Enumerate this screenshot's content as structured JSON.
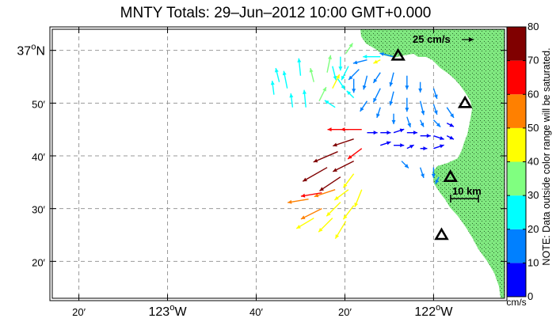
{
  "title": "MNTY Totals: 29–Jun–2012 10:00 GMT+0.000",
  "lat_labels": [
    {
      "lat": 37.0,
      "deg": "37",
      "sup": "o",
      "suffix": "N"
    },
    {
      "lat": 36.8333,
      "text": "50′"
    },
    {
      "lat": 36.6667,
      "text": "40′"
    },
    {
      "lat": 36.5,
      "text": "30′"
    },
    {
      "lat": 36.3333,
      "text": "20′"
    }
  ],
  "lon_labels": [
    {
      "lon": -123.3333,
      "text": "20′"
    },
    {
      "lon": -123.0,
      "deg": "123",
      "sup": "o",
      "suffix": "W"
    },
    {
      "lon": -122.6667,
      "text": "40′"
    },
    {
      "lon": -122.3333,
      "text": "20′"
    },
    {
      "lon": -122.0,
      "deg": "122",
      "sup": "o",
      "suffix": "W"
    }
  ],
  "extent": {
    "lon_min": -123.4333,
    "lon_max": -121.7333,
    "lat_min": 36.2167,
    "lat_max": 37.0667
  },
  "scale_arrow_label": "25 cm/s",
  "scale_bar_label": "10 km",
  "colorbar": {
    "ticks": [
      "0",
      "10",
      "20",
      "30",
      "40",
      "50",
      "60",
      "70",
      "80"
    ],
    "colors": [
      "#0000ff",
      "#0080ff",
      "#00ffff",
      "#80ff80",
      "#ffff00",
      "#ff8000",
      "#ff0000",
      "#800000"
    ],
    "unit": "cm/s",
    "note": "NOTE: Data outside color range will be saturated."
  },
  "land_color": "#80e880",
  "stations": [
    {
      "lon": -122.1333,
      "lat": 36.9833
    },
    {
      "lon": -121.8817,
      "lat": 36.8333
    },
    {
      "lon": -121.9367,
      "lat": 36.6
    },
    {
      "lon": -121.97,
      "lat": 36.4167
    }
  ],
  "vectors": [
    {
      "lon": -122.15,
      "lat": 36.98,
      "u": -8,
      "v": 2,
      "s": 18
    },
    {
      "lon": -122.2,
      "lat": 36.98,
      "u": -10,
      "v": 0,
      "s": 20
    },
    {
      "lon": -122.25,
      "lat": 36.97,
      "u": -8,
      "v": -2,
      "s": 16
    },
    {
      "lon": -122.28,
      "lat": 36.94,
      "u": -6,
      "v": -6,
      "s": 14
    },
    {
      "lon": -122.32,
      "lat": 36.95,
      "u": -4,
      "v": -8,
      "s": 22
    },
    {
      "lon": -122.35,
      "lat": 36.98,
      "u": 0,
      "v": -8,
      "s": 25
    },
    {
      "lon": -122.38,
      "lat": 36.95,
      "u": 2,
      "v": -8,
      "s": 28
    },
    {
      "lon": -122.36,
      "lat": 36.91,
      "u": 4,
      "v": -6,
      "s": 20
    },
    {
      "lon": -122.3,
      "lat": 36.91,
      "u": 0,
      "v": -8,
      "s": 15
    },
    {
      "lon": -122.25,
      "lat": 36.92,
      "u": -2,
      "v": -8,
      "s": 12
    },
    {
      "lon": -122.2,
      "lat": 36.93,
      "u": -4,
      "v": -6,
      "s": 14
    },
    {
      "lon": -122.15,
      "lat": 36.93,
      "u": -2,
      "v": -8,
      "s": 15
    },
    {
      "lon": -122.1,
      "lat": 36.92,
      "u": 0,
      "v": -8,
      "s": 14
    },
    {
      "lon": -122.05,
      "lat": 36.9,
      "u": 0,
      "v": -6,
      "s": 16
    },
    {
      "lon": -122.0,
      "lat": 36.88,
      "u": 2,
      "v": -6,
      "s": 13
    },
    {
      "lon": -122.2,
      "lat": 36.88,
      "u": -4,
      "v": -8,
      "s": 12
    },
    {
      "lon": -122.15,
      "lat": 36.87,
      "u": -2,
      "v": -8,
      "s": 14
    },
    {
      "lon": -122.1,
      "lat": 36.85,
      "u": 0,
      "v": -8,
      "s": 16
    },
    {
      "lon": -122.05,
      "lat": 36.84,
      "u": 2,
      "v": -8,
      "s": 14
    },
    {
      "lon": -122.0,
      "lat": 36.83,
      "u": 2,
      "v": -6,
      "s": 12
    },
    {
      "lon": -121.95,
      "lat": 36.82,
      "u": 4,
      "v": -6,
      "s": 13
    },
    {
      "lon": -122.25,
      "lat": 36.84,
      "u": -4,
      "v": -6,
      "s": 15
    },
    {
      "lon": -122.2,
      "lat": 36.82,
      "u": -2,
      "v": -6,
      "s": 14
    },
    {
      "lon": -122.15,
      "lat": 36.8,
      "u": 0,
      "v": -6,
      "s": 12
    },
    {
      "lon": -122.1,
      "lat": 36.79,
      "u": 2,
      "v": -6,
      "s": 11
    },
    {
      "lon": -122.05,
      "lat": 36.78,
      "u": 2,
      "v": -4,
      "s": 12
    },
    {
      "lon": -122.0,
      "lat": 36.78,
      "u": 4,
      "v": -4,
      "s": 10
    },
    {
      "lon": -121.95,
      "lat": 36.77,
      "u": 4,
      "v": -2,
      "s": 9
    },
    {
      "lon": -122.25,
      "lat": 36.74,
      "u": 6,
      "v": 0,
      "s": 8
    },
    {
      "lon": -122.2,
      "lat": 36.74,
      "u": 6,
      "v": 0,
      "s": 9
    },
    {
      "lon": -122.15,
      "lat": 36.74,
      "u": 6,
      "v": 2,
      "s": 8
    },
    {
      "lon": -122.1,
      "lat": 36.74,
      "u": 6,
      "v": 0,
      "s": 7
    },
    {
      "lon": -122.05,
      "lat": 36.73,
      "u": 6,
      "v": 0,
      "s": 8
    },
    {
      "lon": -122.0,
      "lat": 36.73,
      "u": 6,
      "v": -2,
      "s": 6
    },
    {
      "lon": -121.95,
      "lat": 36.73,
      "u": 4,
      "v": -2,
      "s": 7
    },
    {
      "lon": -122.2,
      "lat": 36.7,
      "u": 6,
      "v": 2,
      "s": 7
    },
    {
      "lon": -122.15,
      "lat": 36.7,
      "u": 6,
      "v": 0,
      "s": 6
    },
    {
      "lon": -122.1,
      "lat": 36.69,
      "u": 4,
      "v": 2,
      "s": 5
    },
    {
      "lon": -122.05,
      "lat": 36.69,
      "u": 4,
      "v": 0,
      "s": 6
    },
    {
      "lon": -122.0,
      "lat": 36.69,
      "u": 6,
      "v": 2,
      "s": 5
    },
    {
      "lon": -122.12,
      "lat": 36.65,
      "u": 4,
      "v": -4,
      "s": 12
    },
    {
      "lon": -122.05,
      "lat": 36.63,
      "u": 2,
      "v": -6,
      "s": 15
    },
    {
      "lon": -122.0,
      "lat": 36.63,
      "u": 0,
      "v": -6,
      "s": 12
    },
    {
      "lon": -121.98,
      "lat": 36.6,
      "u": -2,
      "v": -4,
      "s": 10
    },
    {
      "lon": -122.53,
      "lat": 36.82,
      "u": -1,
      "v": 8,
      "s": 22
    },
    {
      "lon": -122.55,
      "lat": 36.88,
      "u": -2,
      "v": 10,
      "s": 24
    },
    {
      "lon": -122.6,
      "lat": 36.86,
      "u": -1,
      "v": 8,
      "s": 26
    },
    {
      "lon": -122.5,
      "lat": 36.92,
      "u": -1,
      "v": 10,
      "s": 20
    },
    {
      "lon": -122.45,
      "lat": 36.9,
      "u": -2,
      "v": 8,
      "s": 30
    },
    {
      "lon": -122.48,
      "lat": 36.82,
      "u": -1,
      "v": 10,
      "s": 23
    },
    {
      "lon": -122.58,
      "lat": 36.9,
      "u": -2,
      "v": 8,
      "s": 28
    },
    {
      "lon": -122.43,
      "lat": 36.84,
      "u": 4,
      "v": 8,
      "s": 35
    },
    {
      "lon": -122.4,
      "lat": 36.93,
      "u": 2,
      "v": 10,
      "s": 32
    },
    {
      "lon": -122.33,
      "lat": 36.99,
      "u": 4,
      "v": 6,
      "s": 34
    },
    {
      "lon": -122.38,
      "lat": 36.88,
      "u": 4,
      "v": 8,
      "s": 40
    },
    {
      "lon": -122.2,
      "lat": 36.97,
      "u": -4,
      "v": -2,
      "s": 42
    },
    {
      "lon": -122.3,
      "lat": 36.85,
      "u": -4,
      "v": 4,
      "s": 22
    },
    {
      "lon": -122.37,
      "lat": 36.82,
      "u": -6,
      "v": 4,
      "s": 20
    },
    {
      "lon": -122.3,
      "lat": 36.72,
      "u": -12,
      "v": -4,
      "s": 75
    },
    {
      "lon": -122.36,
      "lat": 36.68,
      "u": -14,
      "v": -6,
      "s": 78
    },
    {
      "lon": -122.4,
      "lat": 36.63,
      "u": -14,
      "v": -8,
      "s": 75
    },
    {
      "lon": -122.35,
      "lat": 36.6,
      "u": -12,
      "v": -8,
      "s": 72
    },
    {
      "lon": -122.3,
      "lat": 36.65,
      "u": -12,
      "v": -6,
      "s": 70
    },
    {
      "lon": -122.27,
      "lat": 36.69,
      "u": -8,
      "v": -6,
      "s": 65
    },
    {
      "lon": -122.27,
      "lat": 36.75,
      "u": -12,
      "v": 0,
      "s": 62
    },
    {
      "lon": -122.32,
      "lat": 36.75,
      "u": -12,
      "v": 0,
      "s": 60
    },
    {
      "lon": -122.3,
      "lat": 36.61,
      "u": -6,
      "v": -8,
      "s": 45
    },
    {
      "lon": -122.27,
      "lat": 36.56,
      "u": -4,
      "v": -10,
      "s": 42
    },
    {
      "lon": -122.32,
      "lat": 36.56,
      "u": -8,
      "v": -6,
      "s": 44
    },
    {
      "lon": -122.37,
      "lat": 36.56,
      "u": -12,
      "v": -4,
      "s": 55
    },
    {
      "lon": -122.42,
      "lat": 36.55,
      "u": -12,
      "v": -2,
      "s": 62
    },
    {
      "lon": -122.47,
      "lat": 36.53,
      "u": -12,
      "v": -2,
      "s": 58
    },
    {
      "lon": -122.35,
      "lat": 36.52,
      "u": -8,
      "v": -8,
      "s": 45
    },
    {
      "lon": -122.3,
      "lat": 36.51,
      "u": -6,
      "v": -8,
      "s": 42
    },
    {
      "lon": -122.42,
      "lat": 36.5,
      "u": -12,
      "v": -6,
      "s": 52
    },
    {
      "lon": -122.45,
      "lat": 36.47,
      "u": -10,
      "v": -6,
      "s": 48
    },
    {
      "lon": -122.38,
      "lat": 36.47,
      "u": -8,
      "v": -8,
      "s": 44
    },
    {
      "lon": -122.33,
      "lat": 36.46,
      "u": -6,
      "v": -10,
      "s": 40
    }
  ]
}
